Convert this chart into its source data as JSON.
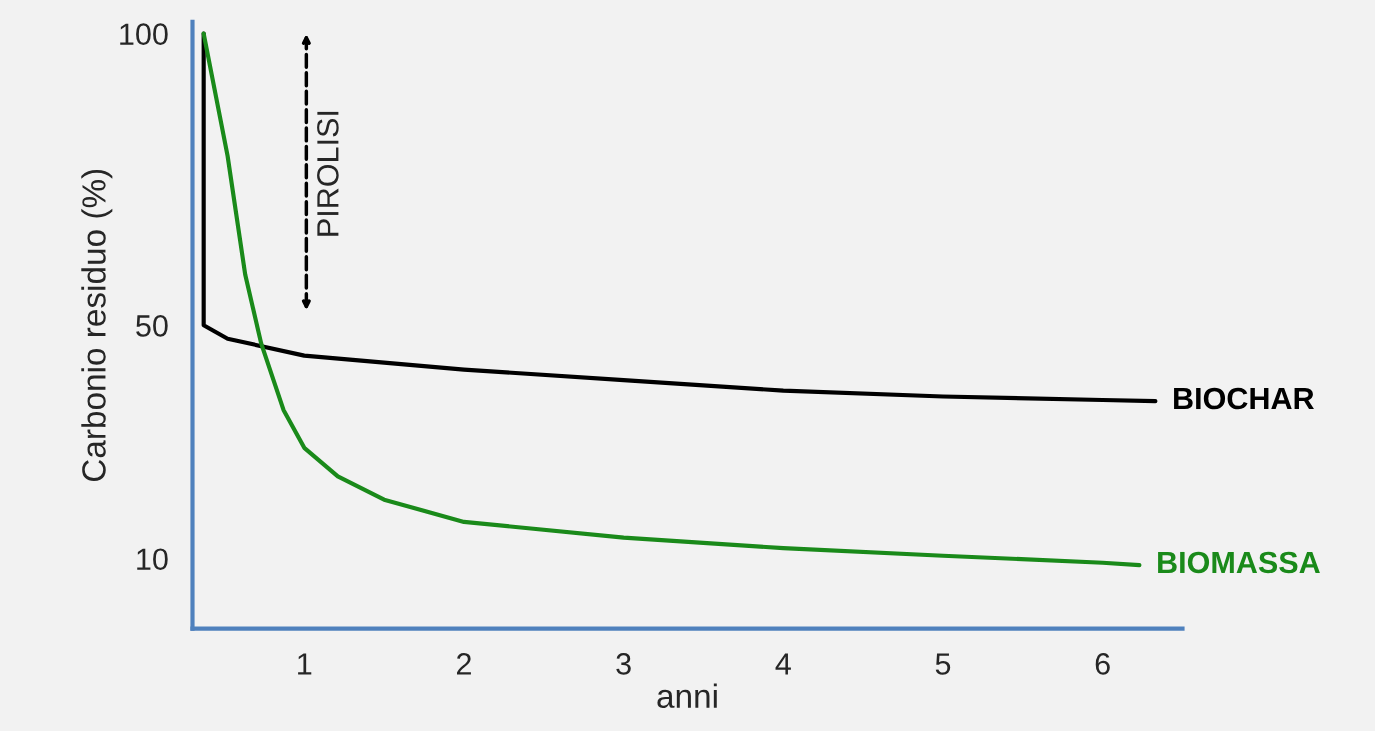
{
  "chart_data": {
    "type": "line",
    "xlabel": "anni",
    "ylabel": "Carbonio residuo (%)",
    "xlim": [
      0.3,
      6.5
    ],
    "xticks": [
      1,
      2,
      3,
      4,
      5,
      6
    ],
    "ylim": [
      -2,
      102
    ],
    "yticks": [
      10,
      50,
      100
    ],
    "grid": false,
    "marker": "none",
    "line_style": "solid",
    "series": [
      {
        "name": "BIOCHAR",
        "color": "#000000",
        "x": [
          0.37,
          0.37,
          0.52,
          1.0,
          2.0,
          3.0,
          4.0,
          5.0,
          6.0,
          6.33
        ],
        "values": [
          100,
          50,
          47.7,
          44.8,
          42.4,
          40.6,
          38.8,
          37.8,
          37.2,
          37.0
        ]
      },
      {
        "name": "BIOMASSA",
        "color": "#1a8a1a",
        "x": [
          0.37,
          0.52,
          0.63,
          0.73,
          0.87,
          1.0,
          1.21,
          1.5,
          2.0,
          3.0,
          4.0,
          5.0,
          6.0,
          6.23
        ],
        "values": [
          100,
          79,
          58.7,
          46.9,
          35.5,
          29.0,
          24.1,
          20.1,
          16.3,
          13.6,
          11.8,
          10.5,
          9.3,
          8.9
        ]
      }
    ],
    "annotations": [
      "PIROLISI"
    ]
  }
}
